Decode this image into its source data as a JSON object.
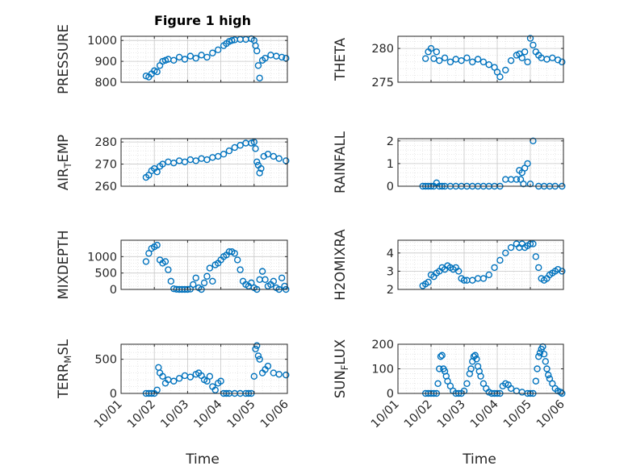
{
  "figure": {
    "title": "Figure 1 high",
    "xaxis_label": "Time"
  },
  "chart_data": [
    {
      "type": "scatter",
      "ylabel": "PRESSURE",
      "ylim": [
        800,
        1020
      ],
      "yticks": [
        "800",
        "900",
        "1000"
      ],
      "xticks": [
        "10/01",
        "10/02",
        "10/03",
        "10/04",
        "10/05",
        "10/06"
      ],
      "xlim": [
        "10/01",
        "10/06"
      ],
      "grid": true,
      "x": [
        "10/01 18:00",
        "10/01 20:00",
        "10/01 22:00",
        "10/02 00:00",
        "10/02 02:00",
        "10/02 04:00",
        "10/02 06:00",
        "10/02 08:00",
        "10/02 10:00",
        "10/02 14:00",
        "10/02 18:00",
        "10/02 22:00",
        "10/03 02:00",
        "10/03 06:00",
        "10/03 10:00",
        "10/03 14:00",
        "10/03 18:00",
        "10/03 22:00",
        "10/04 02:00",
        "10/04 04:00",
        "10/04 06:00",
        "10/04 08:00",
        "10/04 10:00",
        "10/04 14:00",
        "10/04 18:00",
        "10/04 22:00",
        "10/05 00:00",
        "10/05 01:00",
        "10/05 02:00",
        "10/05 03:00",
        "10/05 04:00",
        "10/05 06:00",
        "10/05 08:00",
        "10/05 12:00",
        "10/05 16:00",
        "10/05 20:00",
        "10/05 23:00"
      ],
      "y": [
        830,
        825,
        840,
        855,
        850,
        880,
        900,
        905,
        910,
        905,
        920,
        910,
        925,
        915,
        930,
        920,
        940,
        955,
        975,
        985,
        995,
        1000,
        1003,
        1005,
        1005,
        1008,
        1000,
        975,
        950,
        880,
        820,
        905,
        915,
        930,
        925,
        920,
        915
      ]
    },
    {
      "type": "scatter",
      "ylabel": "THETA",
      "ylim": [
        275,
        281.8
      ],
      "yticks": [
        "275",
        "280"
      ],
      "xticks": [
        "10/01",
        "10/02",
        "10/03",
        "10/04",
        "10/05",
        "10/06"
      ],
      "xlim": [
        "10/01",
        "10/06"
      ],
      "grid": true,
      "x": [
        "10/01 20:00",
        "10/01 22:00",
        "10/02 00:00",
        "10/02 02:00",
        "10/02 04:00",
        "10/02 06:00",
        "10/02 10:00",
        "10/02 14:00",
        "10/02 18:00",
        "10/02 22:00",
        "10/03 02:00",
        "10/03 06:00",
        "10/03 10:00",
        "10/03 14:00",
        "10/03 18:00",
        "10/03 22:00",
        "10/04 00:00",
        "10/04 02:00",
        "10/04 06:00",
        "10/04 10:00",
        "10/04 14:00",
        "10/04 16:00",
        "10/04 18:00",
        "10/04 20:00",
        "10/04 22:00",
        "10/05 00:00",
        "10/05 02:00",
        "10/05 04:00",
        "10/05 06:00",
        "10/05 08:00",
        "10/05 12:00",
        "10/05 16:00",
        "10/05 20:00",
        "10/05 23:00"
      ],
      "y": [
        278.5,
        279.5,
        280.0,
        278.5,
        279.5,
        278.2,
        278.6,
        278.0,
        278.4,
        278.2,
        278.6,
        278.0,
        278.4,
        278.0,
        277.6,
        277.2,
        276.5,
        275.8,
        276.8,
        278.2,
        279.0,
        279.2,
        278.6,
        279.5,
        278.0,
        281.5,
        280.5,
        279.5,
        279.0,
        278.6,
        278.4,
        278.6,
        278.3,
        278.0
      ]
    },
    {
      "type": "scatter",
      "ylabel": "AIR_TEMP",
      "ylim": [
        260,
        281.5
      ],
      "yticks": [
        "260",
        "270",
        "280"
      ],
      "xticks": [
        "10/01",
        "10/02",
        "10/03",
        "10/04",
        "10/05",
        "10/06"
      ],
      "xlim": [
        "10/01",
        "10/06"
      ],
      "grid": true,
      "x": [
        "10/01 18:00",
        "10/01 20:00",
        "10/01 22:00",
        "10/02 00:00",
        "10/02 02:00",
        "10/02 04:00",
        "10/02 06:00",
        "10/02 10:00",
        "10/02 14:00",
        "10/02 18:00",
        "10/02 22:00",
        "10/03 02:00",
        "10/03 06:00",
        "10/03 10:00",
        "10/03 14:00",
        "10/03 18:00",
        "10/03 22:00",
        "10/04 02:00",
        "10/04 06:00",
        "10/04 10:00",
        "10/04 14:00",
        "10/04 18:00",
        "10/04 22:00",
        "10/05 00:00",
        "10/05 01:00",
        "10/05 02:00",
        "10/05 03:00",
        "10/05 04:00",
        "10/05 05:00",
        "10/05 07:00",
        "10/05 10:00",
        "10/05 14:00",
        "10/05 18:00",
        "10/05 23:00"
      ],
      "y": [
        264,
        265,
        267,
        268,
        266.5,
        269,
        270,
        271,
        270.5,
        271.5,
        271,
        272,
        271.5,
        272.5,
        272,
        273,
        273.5,
        274.5,
        276,
        277.5,
        278.5,
        279.5,
        279.5,
        280,
        277,
        271,
        269.5,
        266,
        268,
        273.5,
        274.5,
        273.5,
        272.5,
        271.5
      ]
    },
    {
      "type": "scatter",
      "ylabel": "RAINFALL",
      "ylim": [
        0,
        2.1
      ],
      "yticks": [
        "0",
        "1",
        "2"
      ],
      "xticks": [
        "10/01",
        "10/02",
        "10/03",
        "10/04",
        "10/05",
        "10/06"
      ],
      "xlim": [
        "10/01",
        "10/06"
      ],
      "grid": true,
      "x": [
        "10/01 18:00",
        "10/01 20:00",
        "10/01 22:00",
        "10/02 00:00",
        "10/02 02:00",
        "10/02 04:00",
        "10/02 06:00",
        "10/02 08:00",
        "10/02 10:00",
        "10/02 14:00",
        "10/02 18:00",
        "10/02 22:00",
        "10/03 02:00",
        "10/03 06:00",
        "10/03 10:00",
        "10/03 14:00",
        "10/03 18:00",
        "10/03 22:00",
        "10/04 02:00",
        "10/04 06:00",
        "10/04 10:00",
        "10/04 14:00",
        "10/04 16:00",
        "10/04 17:00",
        "10/04 18:00",
        "10/04 19:00",
        "10/04 20:00",
        "10/04 22:00",
        "10/05 00:00",
        "10/05 02:00",
        "10/05 06:00",
        "10/05 10:00",
        "10/05 14:00",
        "10/05 18:00",
        "10/05 23:00"
      ],
      "y": [
        0,
        0,
        0,
        0,
        0,
        0.15,
        0,
        0,
        0,
        0,
        0,
        0,
        0,
        0,
        0,
        0,
        0,
        0,
        0,
        0.3,
        0.3,
        0.3,
        0.7,
        0.3,
        0.6,
        0.1,
        0.8,
        1.0,
        0.1,
        2.0,
        0,
        0,
        0,
        0,
        0
      ]
    },
    {
      "type": "scatter",
      "ylabel": "MIXDEPTH",
      "ylim": [
        0,
        1500
      ],
      "yticks": [
        "0",
        "500",
        "1000"
      ],
      "xticks": [
        "10/01",
        "10/02",
        "10/03",
        "10/04",
        "10/05",
        "10/06"
      ],
      "xlim": [
        "10/01",
        "10/06"
      ],
      "grid": true,
      "x": [
        "10/01 18:00",
        "10/01 20:00",
        "10/01 22:00",
        "10/02 00:00",
        "10/02 02:00",
        "10/02 04:00",
        "10/02 06:00",
        "10/02 08:00",
        "10/02 10:00",
        "10/02 12:00",
        "10/02 14:00",
        "10/02 16:00",
        "10/02 18:00",
        "10/02 20:00",
        "10/02 22:00",
        "10/03 00:00",
        "10/03 02:00",
        "10/03 04:00",
        "10/03 06:00",
        "10/03 08:00",
        "10/03 10:00",
        "10/03 12:00",
        "10/03 14:00",
        "10/03 16:00",
        "10/03 18:00",
        "10/03 20:00",
        "10/03 22:00",
        "10/04 00:00",
        "10/04 02:00",
        "10/04 04:00",
        "10/04 06:00",
        "10/04 08:00",
        "10/04 10:00",
        "10/04 12:00",
        "10/04 14:00",
        "10/04 16:00",
        "10/04 18:00",
        "10/04 20:00",
        "10/04 22:00",
        "10/05 00:00",
        "10/05 02:00",
        "10/05 04:00",
        "10/05 06:00",
        "10/05 08:00",
        "10/05 10:00",
        "10/05 12:00",
        "10/05 14:00",
        "10/05 16:00",
        "10/05 18:00",
        "10/05 20:00",
        "10/05 22:00",
        "10/05 23:00"
      ],
      "y": [
        850,
        1100,
        1250,
        1300,
        1350,
        900,
        800,
        850,
        600,
        250,
        20,
        5,
        0,
        0,
        0,
        0,
        10,
        150,
        350,
        50,
        0,
        200,
        400,
        650,
        250,
        750,
        800,
        900,
        1000,
        1050,
        1150,
        1150,
        1100,
        900,
        600,
        250,
        150,
        100,
        200,
        50,
        0,
        300,
        550,
        300,
        100,
        150,
        250,
        50,
        0,
        350,
        100,
        0
      ]
    },
    {
      "type": "scatter",
      "ylabel": "H2OMIXRA",
      "ylim": [
        2,
        4.7
      ],
      "yticks": [
        "2",
        "3",
        "4"
      ],
      "xticks": [
        "10/01",
        "10/02",
        "10/03",
        "10/04",
        "10/05",
        "10/06"
      ],
      "xlim": [
        "10/01",
        "10/06"
      ],
      "grid": true,
      "x": [
        "10/01 18:00",
        "10/01 20:00",
        "10/01 22:00",
        "10/02 00:00",
        "10/02 02:00",
        "10/02 04:00",
        "10/02 06:00",
        "10/02 08:00",
        "10/02 10:00",
        "10/02 12:00",
        "10/02 14:00",
        "10/02 16:00",
        "10/02 18:00",
        "10/02 20:00",
        "10/02 22:00",
        "10/03 00:00",
        "10/03 02:00",
        "10/03 06:00",
        "10/03 10:00",
        "10/03 14:00",
        "10/03 18:00",
        "10/03 22:00",
        "10/04 02:00",
        "10/04 06:00",
        "10/04 10:00",
        "10/04 14:00",
        "10/04 16:00",
        "10/04 18:00",
        "10/04 20:00",
        "10/04 22:00",
        "10/05 00:00",
        "10/05 02:00",
        "10/05 04:00",
        "10/05 06:00",
        "10/05 08:00",
        "10/05 10:00",
        "10/05 12:00",
        "10/05 14:00",
        "10/05 16:00",
        "10/05 18:00",
        "10/05 20:00",
        "10/05 23:00"
      ],
      "y": [
        2.2,
        2.3,
        2.4,
        2.8,
        2.7,
        2.9,
        3.0,
        3.2,
        3.1,
        3.3,
        3.2,
        3.1,
        3.2,
        3.0,
        2.6,
        2.5,
        2.5,
        2.5,
        2.6,
        2.6,
        2.8,
        3.2,
        3.6,
        4.0,
        4.3,
        4.5,
        4.3,
        4.5,
        4.3,
        4.4,
        4.5,
        4.5,
        3.8,
        3.2,
        2.6,
        2.5,
        2.6,
        2.8,
        2.9,
        3.0,
        3.1,
        3.0
      ]
    },
    {
      "type": "scatter",
      "ylabel": "TERR_MSL",
      "ylim": [
        0,
        720
      ],
      "yticks": [
        "0",
        "500"
      ],
      "xticks": [
        "10/01",
        "10/02",
        "10/03",
        "10/04",
        "10/05",
        "10/06"
      ],
      "xlim": [
        "10/01",
        "10/06"
      ],
      "grid": true,
      "x": [
        "10/01 18:00",
        "10/01 20:00",
        "10/01 22:00",
        "10/02 00:00",
        "10/02 02:00",
        "10/02 03:00",
        "10/02 04:00",
        "10/02 06:00",
        "10/02 08:00",
        "10/02 10:00",
        "10/02 14:00",
        "10/02 18:00",
        "10/02 22:00",
        "10/03 02:00",
        "10/03 06:00",
        "10/03 08:00",
        "10/03 10:00",
        "10/03 12:00",
        "10/03 14:00",
        "10/03 16:00",
        "10/03 18:00",
        "10/03 20:00",
        "10/03 22:00",
        "10/04 00:00",
        "10/04 02:00",
        "10/04 04:00",
        "10/04 06:00",
        "10/04 10:00",
        "10/04 14:00",
        "10/04 18:00",
        "10/04 20:00",
        "10/04 22:00",
        "10/05 00:00",
        "10/05 01:00",
        "10/05 02:00",
        "10/05 03:00",
        "10/05 04:00",
        "10/05 06:00",
        "10/05 08:00",
        "10/05 10:00",
        "10/05 14:00",
        "10/05 18:00",
        "10/05 23:00"
      ],
      "y": [
        0,
        0,
        0,
        0,
        50,
        380,
        300,
        250,
        150,
        200,
        180,
        220,
        260,
        240,
        280,
        300,
        260,
        200,
        180,
        250,
        100,
        50,
        150,
        180,
        0,
        0,
        0,
        0,
        0,
        0,
        0,
        0,
        250,
        650,
        700,
        550,
        500,
        300,
        350,
        400,
        300,
        280,
        270
      ]
    },
    {
      "type": "scatter",
      "ylabel": "SUN_FLUX",
      "ylim": [
        0,
        200
      ],
      "yticks": [
        "0",
        "100",
        "200"
      ],
      "xticks": [
        "10/01",
        "10/02",
        "10/03",
        "10/04",
        "10/05",
        "10/06"
      ],
      "xlim": [
        "10/01",
        "10/06"
      ],
      "grid": true,
      "x": [
        "10/01 20:00",
        "10/01 22:00",
        "10/02 00:00",
        "10/02 02:00",
        "10/02 04:00",
        "10/02 05:00",
        "10/02 06:00",
        "10/02 07:00",
        "10/02 08:00",
        "10/02 09:00",
        "10/02 10:00",
        "10/02 11:00",
        "10/02 12:00",
        "10/02 14:00",
        "10/02 16:00",
        "10/02 18:00",
        "10/02 20:00",
        "10/02 22:00",
        "10/03 00:00",
        "10/03 02:00",
        "10/03 04:00",
        "10/03 05:00",
        "10/03 06:00",
        "10/03 07:00",
        "10/03 08:00",
        "10/03 09:00",
        "10/03 10:00",
        "10/03 11:00",
        "10/03 12:00",
        "10/03 14:00",
        "10/03 16:00",
        "10/03 18:00",
        "10/03 20:00",
        "10/03 22:00",
        "10/04 00:00",
        "10/04 02:00",
        "10/04 04:00",
        "10/04 06:00",
        "10/04 08:00",
        "10/04 10:00",
        "10/04 14:00",
        "10/04 18:00",
        "10/04 22:00",
        "10/05 00:00",
        "10/05 02:00",
        "10/05 04:00",
        "10/05 05:00",
        "10/05 06:00",
        "10/05 07:00",
        "10/05 08:00",
        "10/05 09:00",
        "10/05 10:00",
        "10/05 11:00",
        "10/05 12:00",
        "10/05 13:00",
        "10/05 14:00",
        "10/05 16:00",
        "10/05 18:00",
        "10/05 20:00",
        "10/05 22:00",
        "10/05 23:00"
      ],
      "y": [
        0,
        0,
        0,
        0,
        0,
        40,
        100,
        150,
        155,
        100,
        90,
        70,
        50,
        30,
        10,
        0,
        0,
        0,
        10,
        40,
        80,
        100,
        130,
        150,
        155,
        140,
        110,
        90,
        70,
        40,
        20,
        5,
        0,
        0,
        0,
        0,
        30,
        40,
        35,
        20,
        10,
        5,
        0,
        0,
        0,
        50,
        100,
        150,
        165,
        180,
        190,
        160,
        130,
        100,
        75,
        60,
        40,
        20,
        10,
        5,
        0
      ]
    }
  ]
}
